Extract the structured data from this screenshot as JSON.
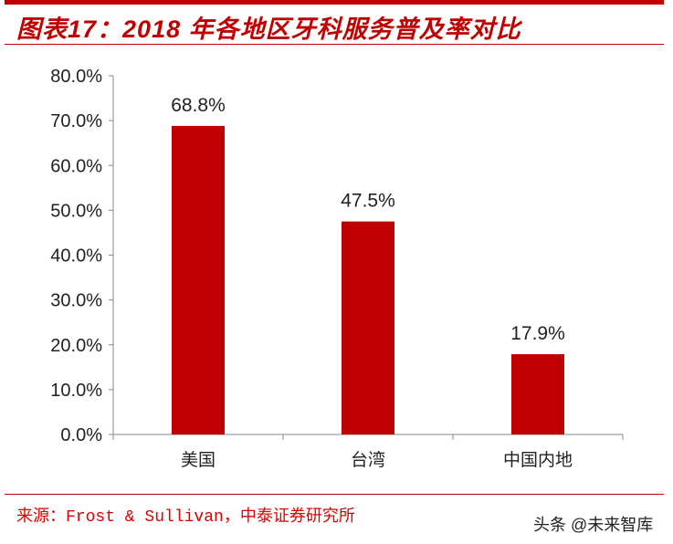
{
  "title": "图表17：2018 年各地区牙科服务普及率对比",
  "source": "来源：Frost & Sullivan，中泰证券研究所",
  "watermark": "头条 @未来智库",
  "colors": {
    "bar": "#c00000",
    "title": "#c00000"
  },
  "chart_data": {
    "type": "bar",
    "title": "图表17：2018 年各地区牙科服务普及率对比",
    "categories": [
      "美国",
      "台湾",
      "中国内地"
    ],
    "values": [
      68.8,
      47.5,
      17.9
    ],
    "data_labels": [
      "68.8%",
      "47.5%",
      "17.9%"
    ],
    "yticks": [
      "0.0%",
      "10.0%",
      "20.0%",
      "30.0%",
      "40.0%",
      "50.0%",
      "60.0%",
      "70.0%",
      "80.0%"
    ],
    "ylim": [
      0,
      80
    ],
    "xlabel": "",
    "ylabel": "",
    "grid": false,
    "legend": "none"
  }
}
